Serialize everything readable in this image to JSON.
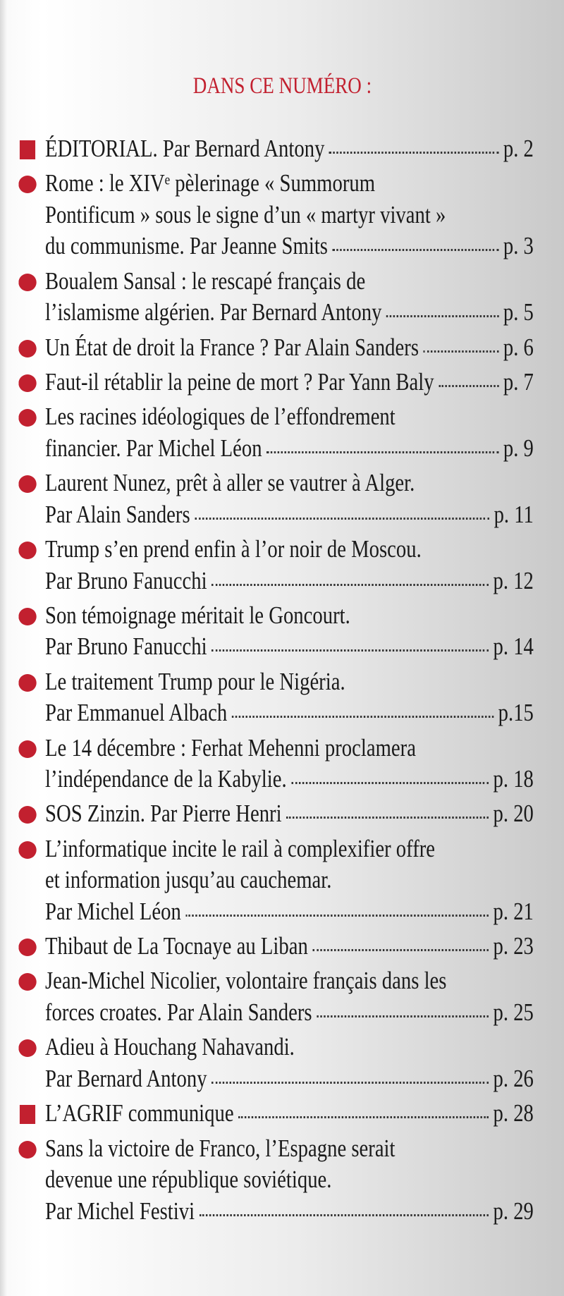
{
  "heading": "DANS CE NUMÉRO :",
  "accent_color": "#c2202f",
  "entries": [
    {
      "bullet": "square",
      "lines": [
        "ÉDITORIAL. Par Bernard Antony"
      ],
      "page": "p. 2"
    },
    {
      "bullet": "circle",
      "lines": [
        "Rome : le XIVᵉ pèlerinage « Summorum",
        "Pontificum » sous le signe d’un « martyr vivant »",
        "du communisme. Par Jeanne Smits"
      ],
      "page": "p. 3"
    },
    {
      "bullet": "circle",
      "lines": [
        "Boualem Sansal : le rescapé français de",
        "l’islamisme algérien. Par Bernard Antony"
      ],
      "page": "p. 5"
    },
    {
      "bullet": "circle",
      "lines": [
        "Un État de droit la France ? Par Alain Sanders"
      ],
      "page": "p. 6"
    },
    {
      "bullet": "circle",
      "lines": [
        "Faut-il rétablir la peine de mort ? Par Yann Baly"
      ],
      "page": "p. 7"
    },
    {
      "bullet": "circle",
      "lines": [
        "Les racines idéologiques de l’effondrement",
        "financier. Par Michel Léon"
      ],
      "page": "p. 9"
    },
    {
      "bullet": "circle",
      "lines": [
        "Laurent Nunez, prêt à aller se vautrer à Alger.",
        "Par Alain Sanders"
      ],
      "page": "p. 11"
    },
    {
      "bullet": "circle",
      "lines": [
        "Trump s’en prend enfin à l’or noir de Moscou.",
        "Par Bruno Fanucchi"
      ],
      "page": "p. 12"
    },
    {
      "bullet": "circle",
      "lines": [
        "Son témoignage méritait le Goncourt.",
        "Par Bruno Fanucchi"
      ],
      "page": "p. 14"
    },
    {
      "bullet": "circle",
      "lines": [
        "Le traitement Trump pour le Nigéria.",
        "Par Emmanuel Albach"
      ],
      "page": "p.15"
    },
    {
      "bullet": "circle",
      "lines": [
        "Le 14 décembre : Ferhat Mehenni proclamera",
        "l’indépendance de la Kabylie."
      ],
      "page": "p. 18"
    },
    {
      "bullet": "circle",
      "lines": [
        "SOS Zinzin. Par Pierre Henri"
      ],
      "page": "p. 20"
    },
    {
      "bullet": "circle",
      "lines": [
        "L’informatique incite le rail à complexifier offre",
        "et information jusqu’au cauchemar.",
        "Par Michel Léon"
      ],
      "page": "p. 21"
    },
    {
      "bullet": "circle",
      "lines": [
        "Thibaut de La Tocnaye au Liban"
      ],
      "page": "p. 23"
    },
    {
      "bullet": "circle",
      "lines": [
        "Jean-Michel Nicolier, volontaire français dans les",
        "forces croates. Par Alain Sanders"
      ],
      "page": "p. 25"
    },
    {
      "bullet": "circle",
      "lines": [
        "Adieu à Houchang Nahavandi.",
        "Par Bernard Antony"
      ],
      "page": "p.  26"
    },
    {
      "bullet": "square",
      "lines": [
        "L’AGRIF communique"
      ],
      "page": "p. 28"
    },
    {
      "bullet": "circle",
      "lines": [
        "Sans la victoire de Franco, l’Espagne serait",
        "devenue une république soviétique.",
        "Par Michel Festivi"
      ],
      "page": "p. 29"
    }
  ]
}
